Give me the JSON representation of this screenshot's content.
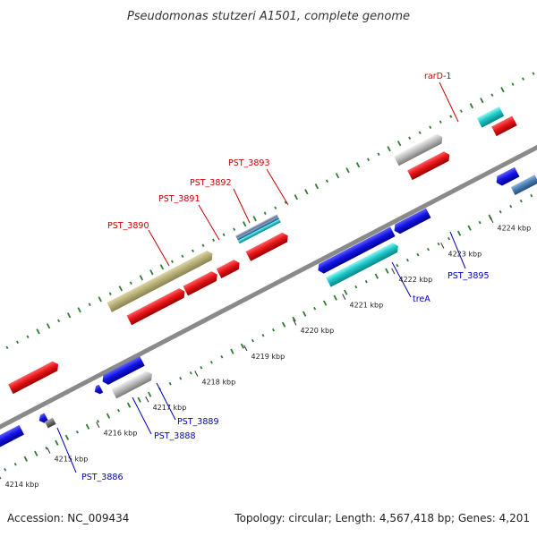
{
  "title": "Pseudomonas stutzeri A1501, complete genome",
  "footer": {
    "accession": "Accession: NC_009434",
    "summary": "Topology: circular; Length: 4,567,418 bp; Genes: 4,201"
  },
  "colors": {
    "backbone": "#8a8a8a",
    "gc_marks": "#2e7d32",
    "plus_strand": "#e8161b",
    "minus_strand": "#1414e6",
    "rna_or_other": "#9c9c9c",
    "cyan_feature": "#1bc7c7",
    "olive_feature": "#b8b07a",
    "steel_feature": "#4a7fb5",
    "label_top": "#cc0000",
    "label_bottom": "#0000bb"
  },
  "scale_ticks": [
    "4214 kbp",
    "4215 kbp",
    "4216 kbp",
    "4217 kbp",
    "4218 kbp",
    "4219 kbp",
    "4220 kbp",
    "4221 kbp",
    "4222 kbp",
    "4223 kbp",
    "4224 kbp"
  ],
  "gene_labels": {
    "top": [
      "PST_3890",
      "PST_3891",
      "PST_3892",
      "PST_3893",
      "rarD-1"
    ],
    "bottom": [
      "PST_3886",
      "PST_3888",
      "PST_3889",
      "treA",
      "PST_3895"
    ]
  }
}
